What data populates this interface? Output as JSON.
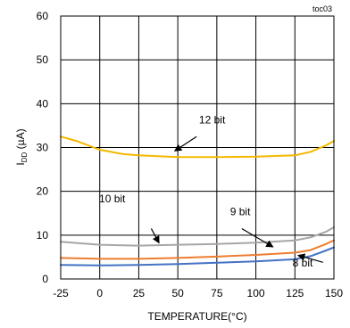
{
  "chart_data": {
    "type": "line",
    "title": "toc03",
    "xlabel": "TEMPERATURE(°C)",
    "ylabel_main": "I",
    "ylabel_sub": "DD",
    "ylabel_unit": " (µA)",
    "xlim": [
      -25,
      150
    ],
    "ylim": [
      0,
      60
    ],
    "xticks": [
      -25,
      0,
      25,
      50,
      75,
      100,
      125,
      150
    ],
    "yticks": [
      0,
      10,
      20,
      30,
      40,
      50,
      60
    ],
    "grid": true,
    "series": [
      {
        "name": "12 bit",
        "color": "#F5B800",
        "x": [
          -25,
          -15,
          0,
          15,
          25,
          50,
          75,
          100,
          125,
          135,
          145,
          150
        ],
        "y": [
          32.5,
          31.5,
          29.5,
          28.5,
          28.2,
          27.8,
          27.8,
          27.9,
          28.2,
          29.0,
          30.5,
          31.5
        ]
      },
      {
        "name": "10 bit",
        "color": "#A6A6A6",
        "x": [
          -25,
          0,
          25,
          50,
          75,
          100,
          125,
          135,
          145,
          150
        ],
        "y": [
          8.5,
          7.8,
          7.6,
          7.8,
          8.0,
          8.3,
          8.8,
          9.5,
          10.8,
          11.8
        ]
      },
      {
        "name": "9 bit",
        "color": "#ED7D31",
        "x": [
          -25,
          0,
          25,
          50,
          75,
          100,
          125,
          135,
          145,
          150
        ],
        "y": [
          4.8,
          4.6,
          4.6,
          4.8,
          5.1,
          5.5,
          6.0,
          6.6,
          8.0,
          8.8
        ]
      },
      {
        "name": "8 bit",
        "color": "#4472C4",
        "x": [
          -25,
          0,
          25,
          50,
          75,
          100,
          125,
          135,
          145,
          150
        ],
        "y": [
          3.2,
          3.1,
          3.2,
          3.4,
          3.7,
          4.0,
          4.5,
          5.2,
          6.5,
          7.2
        ]
      }
    ],
    "annotations": [
      {
        "text": "12 bit",
        "text_x": 72,
        "text_y": 35.5,
        "arrow_from": [
          62,
          32.5
        ],
        "arrow_to": [
          48,
          29.2
        ]
      },
      {
        "text": "10 bit",
        "text_x": 8,
        "text_y": 17.5,
        "arrow_from": [
          33,
          11.5
        ],
        "arrow_to": [
          38,
          8.2
        ]
      },
      {
        "text": "9 bit",
        "text_x": 90,
        "text_y": 14.5,
        "arrow_from": [
          91,
          11.5
        ],
        "arrow_to": [
          111,
          7.3
        ]
      },
      {
        "text": "8 bit",
        "text_x": 130,
        "text_y": 2.8,
        "arrow_from": [
          143,
          3.8
        ],
        "arrow_to": [
          127,
          5.4
        ]
      }
    ]
  }
}
